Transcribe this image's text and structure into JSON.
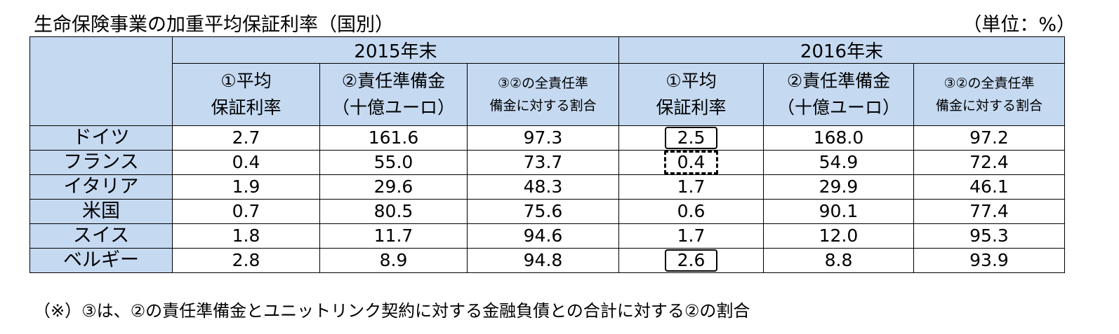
{
  "title": "生命保険事業の加重平均保証利率（国別）",
  "unit": "（単位：%）",
  "years": [
    "2015年末",
    "2016年末"
  ],
  "columns": [
    {
      "line1": "①平均",
      "line2": "保証利率"
    },
    {
      "line1": "②責任準備金",
      "line2": "（十億ユーロ）"
    },
    {
      "line1": "③②の全責任準",
      "line2": "備金に対する割合"
    }
  ],
  "rows": [
    {
      "country": "ドイツ",
      "values": [
        "2.7",
        "161.6",
        "97.3",
        "2.5",
        "168.0",
        "97.2"
      ]
    },
    {
      "country": "フランス",
      "values": [
        "0.4",
        "55.0",
        "73.7",
        "0.4",
        "54.9",
        "72.4"
      ]
    },
    {
      "country": "イタリア",
      "values": [
        "1.9",
        "29.6",
        "48.3",
        "1.7",
        "29.9",
        "46.1"
      ]
    },
    {
      "country": "米国",
      "values": [
        "0.7",
        "80.5",
        "75.6",
        "0.6",
        "90.1",
        "77.4"
      ]
    },
    {
      "country": "スイス",
      "values": [
        "1.8",
        "11.7",
        "94.6",
        "1.7",
        "12.0",
        "95.3"
      ]
    },
    {
      "country": "ベルギー",
      "values": [
        "2.8",
        "8.9",
        "94.8",
        "2.6",
        "8.8",
        "93.9"
      ]
    }
  ],
  "note": "（※）③は、②の責任準備金とユニットリンク契約に対する金融負債との合計に対する②の割合"
}
